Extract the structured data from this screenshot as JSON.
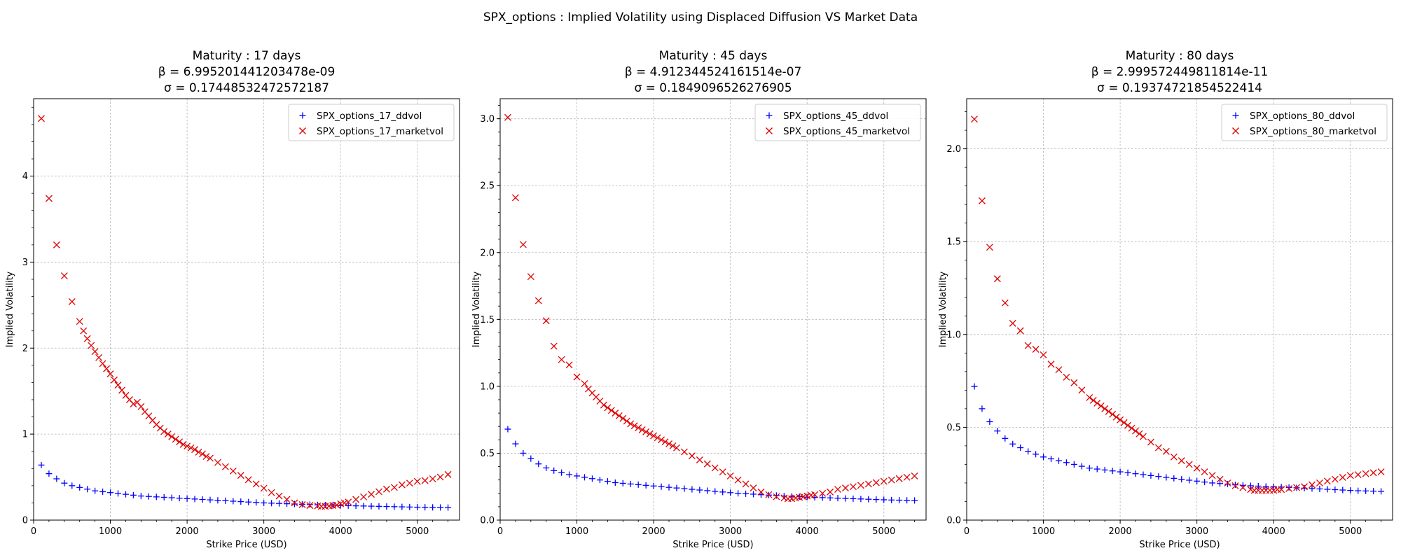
{
  "figure_title": "SPX_options : Implied Volatility using Displaced Diffusion VS Market Data",
  "colors": {
    "ddvol": "#0000ff",
    "marketvol": "#e00000"
  },
  "chart_data": [
    {
      "type": "scatter",
      "title_lines": [
        "Maturity : 17 days",
        "β = 6.995201441203478e-09",
        "σ = 0.17448532472572187"
      ],
      "xlabel": "Strike Price (USD)",
      "ylabel": "Implied Volatility",
      "xlim": [
        0,
        5550
      ],
      "ylim": [
        0,
        4.9
      ],
      "xticks": [
        0,
        1000,
        2000,
        3000,
        4000,
        5000
      ],
      "yticks": [
        0,
        1,
        2,
        3,
        4
      ],
      "legend_position": "upper right",
      "grid": true,
      "series": [
        {
          "name": "SPX_options_17_ddvol",
          "marker": "plus",
          "color": "#0000ff",
          "x": [
            100,
            200,
            300,
            400,
            500,
            600,
            700,
            800,
            900,
            1000,
            1100,
            1200,
            1300,
            1400,
            1500,
            1600,
            1700,
            1800,
            1900,
            2000,
            2100,
            2200,
            2300,
            2400,
            2500,
            2600,
            2700,
            2800,
            2900,
            3000,
            3100,
            3200,
            3300,
            3400,
            3500,
            3600,
            3700,
            3800,
            3900,
            4000,
            4100,
            4200,
            4300,
            4400,
            4500,
            4600,
            4700,
            4800,
            4900,
            5000,
            5100,
            5200,
            5300,
            5400
          ],
          "y": [
            0.64,
            0.54,
            0.48,
            0.43,
            0.4,
            0.38,
            0.36,
            0.34,
            0.33,
            0.32,
            0.31,
            0.3,
            0.29,
            0.28,
            0.275,
            0.27,
            0.265,
            0.26,
            0.255,
            0.25,
            0.245,
            0.24,
            0.235,
            0.23,
            0.225,
            0.22,
            0.215,
            0.21,
            0.205,
            0.2,
            0.197,
            0.194,
            0.19,
            0.187,
            0.184,
            0.18,
            0.177,
            0.175,
            0.172,
            0.17,
            0.168,
            0.166,
            0.164,
            0.162,
            0.16,
            0.158,
            0.156,
            0.154,
            0.152,
            0.15,
            0.149,
            0.148,
            0.147,
            0.146
          ]
        },
        {
          "name": "SPX_options_17_marketvol",
          "marker": "x",
          "color": "#e00000",
          "x": [
            100,
            200,
            300,
            400,
            500,
            600,
            650,
            700,
            750,
            800,
            850,
            900,
            950,
            1000,
            1050,
            1100,
            1150,
            1200,
            1250,
            1300,
            1350,
            1400,
            1450,
            1500,
            1550,
            1600,
            1650,
            1700,
            1750,
            1800,
            1850,
            1900,
            1950,
            2000,
            2050,
            2100,
            2150,
            2200,
            2250,
            2300,
            2400,
            2500,
            2600,
            2700,
            2800,
            2900,
            3000,
            3100,
            3200,
            3300,
            3400,
            3500,
            3600,
            3700,
            3750,
            3800,
            3850,
            3900,
            3950,
            4000,
            4050,
            4100,
            4200,
            4300,
            4400,
            4500,
            4600,
            4700,
            4800,
            4900,
            5000,
            5100,
            5200,
            5300,
            5400
          ],
          "y": [
            4.67,
            3.74,
            3.2,
            2.84,
            2.54,
            2.31,
            2.2,
            2.11,
            2.03,
            1.96,
            1.89,
            1.82,
            1.76,
            1.7,
            1.63,
            1.57,
            1.51,
            1.45,
            1.4,
            1.35,
            1.37,
            1.32,
            1.26,
            1.21,
            1.16,
            1.11,
            1.07,
            1.03,
            1.0,
            0.97,
            0.94,
            0.91,
            0.88,
            0.86,
            0.84,
            0.82,
            0.79,
            0.77,
            0.74,
            0.72,
            0.67,
            0.62,
            0.57,
            0.52,
            0.47,
            0.42,
            0.37,
            0.32,
            0.28,
            0.24,
            0.2,
            0.18,
            0.17,
            0.165,
            0.16,
            0.16,
            0.165,
            0.17,
            0.175,
            0.19,
            0.2,
            0.21,
            0.24,
            0.27,
            0.3,
            0.33,
            0.36,
            0.38,
            0.41,
            0.43,
            0.45,
            0.46,
            0.48,
            0.5,
            0.53
          ]
        }
      ]
    },
    {
      "type": "scatter",
      "title_lines": [
        "Maturity : 45 days",
        "β = 4.912344524161514e-07",
        "σ = 0.1849096526276905"
      ],
      "xlabel": "Strike Price (USD)",
      "ylabel": "Implied Volatility",
      "xlim": [
        0,
        5550
      ],
      "ylim": [
        0,
        3.15
      ],
      "xticks": [
        0,
        1000,
        2000,
        3000,
        4000,
        5000
      ],
      "yticks": [
        0.0,
        0.5,
        1.0,
        1.5,
        2.0,
        2.5,
        3.0
      ],
      "legend_position": "upper right",
      "grid": true,
      "series": [
        {
          "name": "SPX_options_45_ddvol",
          "marker": "plus",
          "color": "#0000ff",
          "x": [
            100,
            200,
            300,
            400,
            500,
            600,
            700,
            800,
            900,
            1000,
            1100,
            1200,
            1300,
            1400,
            1500,
            1600,
            1700,
            1800,
            1900,
            2000,
            2100,
            2200,
            2300,
            2400,
            2500,
            2600,
            2700,
            2800,
            2900,
            3000,
            3100,
            3200,
            3300,
            3400,
            3500,
            3600,
            3700,
            3800,
            3900,
            4000,
            4100,
            4200,
            4300,
            4400,
            4500,
            4600,
            4700,
            4800,
            4900,
            5000,
            5100,
            5200,
            5300,
            5400
          ],
          "y": [
            0.68,
            0.57,
            0.5,
            0.46,
            0.42,
            0.39,
            0.37,
            0.355,
            0.34,
            0.33,
            0.32,
            0.31,
            0.3,
            0.29,
            0.28,
            0.275,
            0.27,
            0.265,
            0.26,
            0.255,
            0.25,
            0.245,
            0.24,
            0.235,
            0.23,
            0.225,
            0.22,
            0.215,
            0.21,
            0.205,
            0.2,
            0.197,
            0.194,
            0.19,
            0.187,
            0.184,
            0.18,
            0.177,
            0.175,
            0.172,
            0.17,
            0.168,
            0.166,
            0.164,
            0.162,
            0.16,
            0.158,
            0.156,
            0.154,
            0.152,
            0.15,
            0.149,
            0.148,
            0.147
          ]
        },
        {
          "name": "SPX_options_45_marketvol",
          "marker": "x",
          "color": "#e00000",
          "x": [
            100,
            200,
            300,
            400,
            500,
            600,
            700,
            800,
            900,
            1000,
            1100,
            1150,
            1200,
            1250,
            1300,
            1350,
            1400,
            1450,
            1500,
            1550,
            1600,
            1650,
            1700,
            1750,
            1800,
            1850,
            1900,
            1950,
            2000,
            2050,
            2100,
            2150,
            2200,
            2250,
            2300,
            2400,
            2500,
            2600,
            2700,
            2800,
            2900,
            3000,
            3100,
            3200,
            3300,
            3400,
            3500,
            3600,
            3700,
            3750,
            3800,
            3850,
            3900,
            3950,
            4000,
            4050,
            4100,
            4200,
            4300,
            4400,
            4500,
            4600,
            4700,
            4800,
            4900,
            5000,
            5100,
            5200,
            5300,
            5400
          ],
          "y": [
            3.01,
            2.41,
            2.06,
            1.82,
            1.64,
            1.49,
            1.3,
            1.2,
            1.16,
            1.07,
            1.02,
            0.98,
            0.95,
            0.92,
            0.89,
            0.86,
            0.84,
            0.82,
            0.8,
            0.78,
            0.76,
            0.74,
            0.72,
            0.705,
            0.69,
            0.675,
            0.66,
            0.645,
            0.63,
            0.615,
            0.6,
            0.585,
            0.57,
            0.555,
            0.54,
            0.51,
            0.48,
            0.45,
            0.42,
            0.39,
            0.36,
            0.33,
            0.3,
            0.27,
            0.24,
            0.21,
            0.19,
            0.175,
            0.165,
            0.16,
            0.16,
            0.165,
            0.17,
            0.175,
            0.18,
            0.185,
            0.19,
            0.2,
            0.21,
            0.23,
            0.24,
            0.25,
            0.26,
            0.27,
            0.28,
            0.29,
            0.3,
            0.31,
            0.32,
            0.33
          ]
        }
      ]
    },
    {
      "type": "scatter",
      "title_lines": [
        "Maturity : 80 days",
        "β = 2.999572449811814e-11",
        "σ = 0.19374721854522414"
      ],
      "xlabel": "Strike Price (USD)",
      "ylabel": "Implied Volatility",
      "xlim": [
        0,
        5550
      ],
      "ylim": [
        0,
        2.27
      ],
      "xticks": [
        0,
        1000,
        2000,
        3000,
        4000,
        5000
      ],
      "yticks": [
        0.0,
        0.5,
        1.0,
        1.5,
        2.0
      ],
      "legend_position": "upper right",
      "grid": true,
      "series": [
        {
          "name": "SPX_options_80_ddvol",
          "marker": "plus",
          "color": "#0000ff",
          "x": [
            100,
            200,
            300,
            400,
            500,
            600,
            700,
            800,
            900,
            1000,
            1100,
            1200,
            1300,
            1400,
            1500,
            1600,
            1700,
            1800,
            1900,
            2000,
            2100,
            2200,
            2300,
            2400,
            2500,
            2600,
            2700,
            2800,
            2900,
            3000,
            3100,
            3200,
            3300,
            3400,
            3500,
            3600,
            3700,
            3800,
            3900,
            4000,
            4100,
            4200,
            4300,
            4400,
            4500,
            4600,
            4700,
            4800,
            4900,
            5000,
            5100,
            5200,
            5300,
            5400
          ],
          "y": [
            0.72,
            0.6,
            0.53,
            0.48,
            0.44,
            0.41,
            0.39,
            0.37,
            0.355,
            0.34,
            0.33,
            0.32,
            0.31,
            0.3,
            0.29,
            0.28,
            0.275,
            0.27,
            0.265,
            0.26,
            0.255,
            0.25,
            0.245,
            0.24,
            0.235,
            0.23,
            0.225,
            0.22,
            0.215,
            0.21,
            0.205,
            0.2,
            0.197,
            0.194,
            0.19,
            0.187,
            0.185,
            0.183,
            0.181,
            0.18,
            0.178,
            0.176,
            0.174,
            0.172,
            0.17,
            0.168,
            0.166,
            0.164,
            0.162,
            0.16,
            0.158,
            0.157,
            0.156,
            0.155
          ]
        },
        {
          "name": "SPX_options_80_marketvol",
          "marker": "x",
          "color": "#e00000",
          "x": [
            100,
            200,
            300,
            400,
            500,
            600,
            700,
            800,
            900,
            1000,
            1100,
            1200,
            1300,
            1400,
            1500,
            1600,
            1650,
            1700,
            1750,
            1800,
            1850,
            1900,
            1950,
            2000,
            2050,
            2100,
            2150,
            2200,
            2250,
            2300,
            2400,
            2500,
            2600,
            2700,
            2800,
            2900,
            3000,
            3100,
            3200,
            3300,
            3400,
            3500,
            3600,
            3700,
            3750,
            3800,
            3850,
            3900,
            3950,
            4000,
            4050,
            4100,
            4200,
            4300,
            4400,
            4500,
            4600,
            4700,
            4800,
            4900,
            5000,
            5100,
            5200,
            5300,
            5400
          ],
          "y": [
            2.16,
            1.72,
            1.47,
            1.3,
            1.17,
            1.06,
            1.02,
            0.94,
            0.92,
            0.89,
            0.84,
            0.81,
            0.77,
            0.74,
            0.7,
            0.66,
            0.645,
            0.63,
            0.615,
            0.6,
            0.585,
            0.57,
            0.555,
            0.54,
            0.525,
            0.51,
            0.495,
            0.48,
            0.465,
            0.45,
            0.42,
            0.39,
            0.37,
            0.34,
            0.32,
            0.3,
            0.28,
            0.26,
            0.24,
            0.22,
            0.2,
            0.185,
            0.175,
            0.165,
            0.16,
            0.16,
            0.16,
            0.16,
            0.16,
            0.16,
            0.165,
            0.165,
            0.17,
            0.175,
            0.18,
            0.19,
            0.2,
            0.21,
            0.22,
            0.23,
            0.24,
            0.245,
            0.25,
            0.255,
            0.26
          ]
        }
      ]
    }
  ]
}
